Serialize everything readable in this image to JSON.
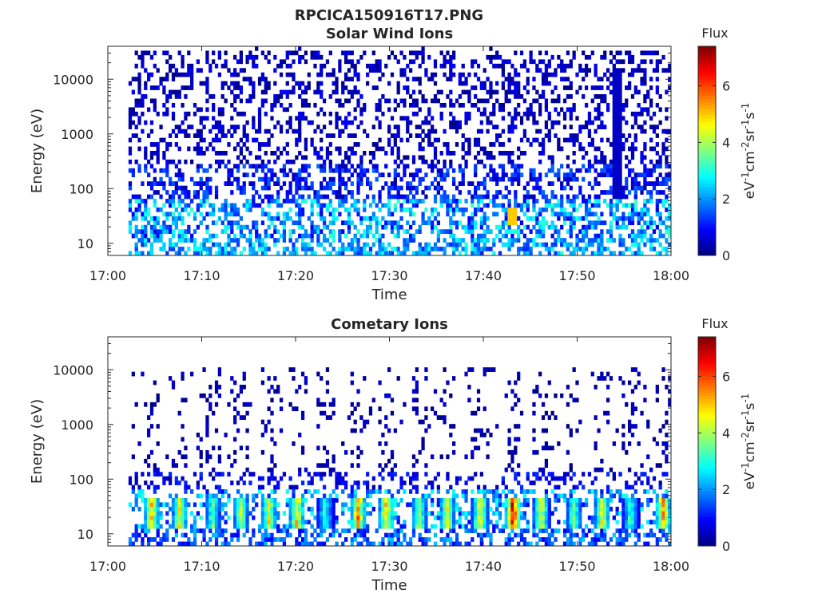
{
  "figure_title": "RPCICA150916T17.PNG",
  "chart_data": [
    {
      "type": "heatmap",
      "title": "Solar Wind Ions",
      "xlabel": "Time",
      "ylabel": "Energy (eV)",
      "x_ticks": [
        "17:00",
        "17:10",
        "17:20",
        "17:30",
        "17:40",
        "17:50",
        "18:00"
      ],
      "y_ticks": [
        "10",
        "100",
        "1000",
        "10000"
      ],
      "y_scale": "log",
      "ylim": [
        6,
        40000
      ],
      "xlim": [
        "17:00",
        "18:00"
      ],
      "data_start": "17:02",
      "colorbar": {
        "title": "Flux",
        "label": "eV-1cm-2sr-1s-1",
        "ticks": [
          "0",
          "2",
          "4",
          "6"
        ],
        "range": [
          0,
          7.4
        ],
        "colormap": "jet"
      },
      "description_profile": "sparse low-flux counts across all energies, higher flux (2-5) below ~60 eV",
      "features": [
        {
          "time": "17:43",
          "energy": 30,
          "flux": 5.0
        },
        {
          "time": "17:54",
          "energy": 1000,
          "flux": 0.5
        }
      ]
    },
    {
      "type": "heatmap",
      "title": "Cometary Ions",
      "xlabel": "Time",
      "ylabel": "Energy (eV)",
      "x_ticks": [
        "17:00",
        "17:10",
        "17:20",
        "17:30",
        "17:40",
        "17:50",
        "18:00"
      ],
      "y_ticks": [
        "10",
        "100",
        "1000",
        "10000"
      ],
      "y_scale": "log",
      "ylim": [
        6,
        40000
      ],
      "xlim": [
        "17:00",
        "18:00"
      ],
      "data_start": "17:02",
      "colorbar": {
        "title": "Flux",
        "label": "eV-1cm-2sr-1s-1",
        "ticks": [
          "0",
          "2",
          "4",
          "6"
        ],
        "range": [
          0,
          7.4
        ],
        "colormap": "jet"
      },
      "bursts_minutes": [
        4.5,
        7.5,
        11,
        14,
        17,
        20,
        23,
        26.5,
        29.5,
        33,
        36,
        39.5,
        43,
        46,
        49.5,
        52.5,
        55.5,
        59
      ],
      "burst_peak_flux": [
        5.5,
        5.0,
        4.0,
        4.5,
        5.0,
        5.5,
        3.5,
        6.0,
        5.5,
        4.5,
        5.0,
        5.5,
        7.2,
        5.0,
        4.0,
        5.0,
        3.5,
        6.0
      ],
      "burst_energy_range_eV": [
        12,
        40
      ]
    }
  ]
}
